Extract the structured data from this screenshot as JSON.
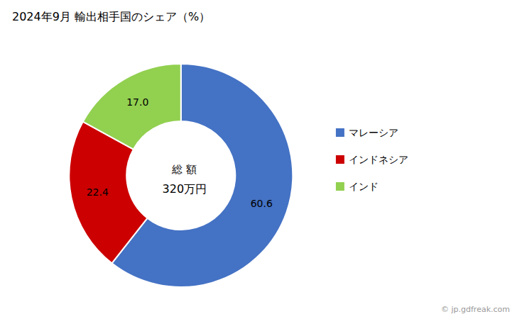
{
  "chart_data": {
    "type": "pie",
    "title": "2024年9月 輸出相手国のシェア（%）",
    "categories": [
      "マレーシア",
      "インドネシア",
      "インド"
    ],
    "values": [
      60.6,
      22.4,
      17.0
    ],
    "value_labels": [
      "60.6",
      "22.4",
      "17.0"
    ],
    "colors": [
      "#4472C4",
      "#CC0000",
      "#92D050"
    ],
    "annotations": [
      "総 額",
      "320万円"
    ],
    "watermark": "© jp.gdfreak.com",
    "data_labels": true,
    "legend": "right"
  }
}
